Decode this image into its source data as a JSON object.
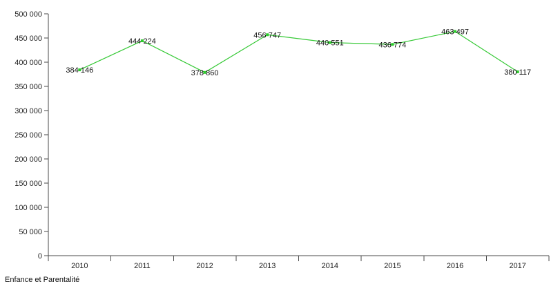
{
  "chart_data": {
    "type": "line",
    "categories": [
      "2010",
      "2011",
      "2012",
      "2013",
      "2014",
      "2015",
      "2016",
      "2017"
    ],
    "values": [
      384146,
      444224,
      378860,
      456747,
      440551,
      436774,
      463497,
      380117
    ],
    "data_labels": [
      "384 146",
      "444 224",
      "378 860",
      "456 747",
      "440 551",
      "436 774",
      "463 497",
      "380 117"
    ],
    "y_ticks": [
      0,
      50000,
      100000,
      150000,
      200000,
      250000,
      300000,
      350000,
      400000,
      450000,
      500000
    ],
    "y_tick_labels": [
      "0",
      "50 000",
      "100 000",
      "150 000",
      "200 000",
      "250 000",
      "300 000",
      "350 000",
      "400 000",
      "450 000",
      "500 000"
    ],
    "ylim": [
      0,
      500000
    ],
    "title": "",
    "xlabel": "",
    "ylabel": "",
    "category_label": "Enfance et Parentalité",
    "grid": false,
    "legend": "none"
  },
  "colors": {
    "line": "#35c935",
    "axis": "#4a4a4a",
    "text": "#222222"
  }
}
